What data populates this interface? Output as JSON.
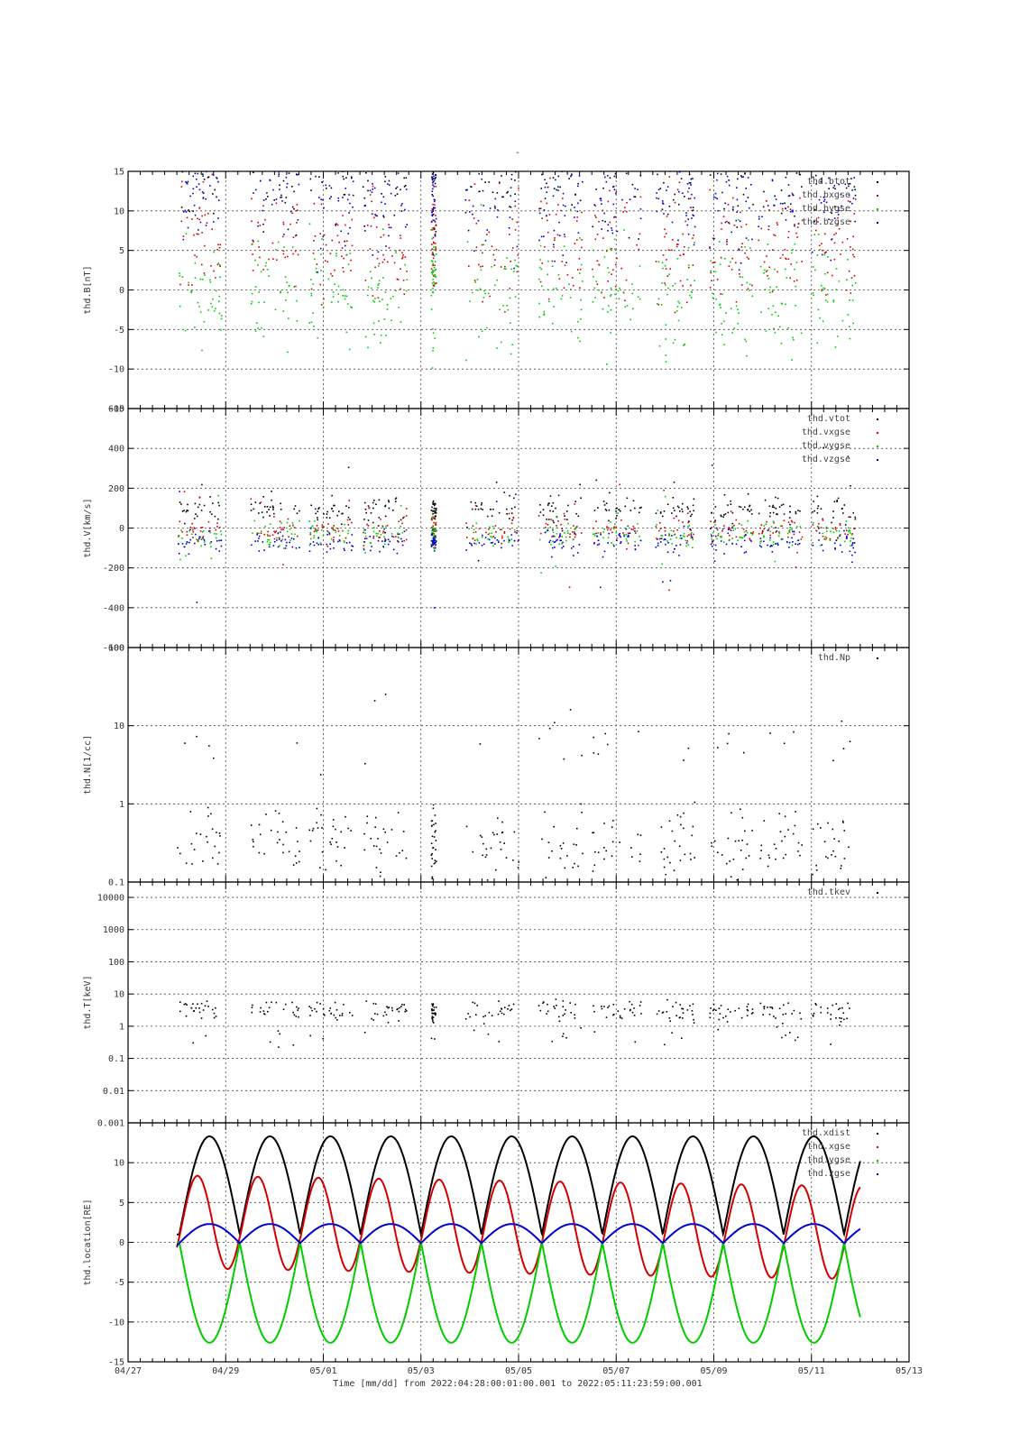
{
  "figure": {
    "title": "-",
    "xlabel": "Time [mm/dd]  from 2022:04:28:00:01:00.001  to  2022:05:11:23:59:00.001",
    "x_tick_labels": [
      "04/27",
      "04/29",
      "05/01",
      "05/03",
      "05/05",
      "05/07",
      "05/09",
      "05/11",
      "05/13"
    ]
  },
  "chart_data": [
    {
      "type": "scatter",
      "ylabel": "thd.B[nT]",
      "ylim": [
        -15,
        15
      ],
      "yscale": "linear",
      "yticks": [
        -15,
        -10,
        -5,
        0,
        5,
        10,
        15
      ],
      "grid": true,
      "legend_position": "top-right",
      "series": [
        {
          "name": "thd.btot",
          "color": "#000000"
        },
        {
          "name": "thd.bxgse",
          "color": "#d40000"
        },
        {
          "name": "thd.bygse",
          "color": "#00cc00"
        },
        {
          "name": "thd.bzgse",
          "color": "#0000cc"
        }
      ]
    },
    {
      "type": "scatter",
      "ylabel": "thd.V[km/s]",
      "ylim": [
        -600,
        600
      ],
      "yscale": "linear",
      "yticks": [
        -600,
        -400,
        -200,
        0,
        200,
        400,
        600
      ],
      "grid": true,
      "legend_position": "top-right",
      "series": [
        {
          "name": "thd.vtot",
          "color": "#000000"
        },
        {
          "name": "thd.vxgse",
          "color": "#d40000"
        },
        {
          "name": "thd.vygse",
          "color": "#00cc00"
        },
        {
          "name": "thd.vzgse",
          "color": "#0000cc"
        }
      ]
    },
    {
      "type": "scatter",
      "ylabel": "thd.N[1/cc]",
      "ylim": [
        0.1,
        100
      ],
      "yscale": "log",
      "yticks": [
        0.1,
        1,
        10,
        100
      ],
      "grid": true,
      "legend_position": "top-right",
      "series": [
        {
          "name": "thd.Np",
          "color": "#000000"
        }
      ]
    },
    {
      "type": "scatter",
      "ylabel": "thd.T[keV]",
      "ylim": [
        0.001,
        30000
      ],
      "yscale": "log",
      "yticks": [
        0.001,
        0.01,
        0.1,
        1,
        10,
        100,
        1000,
        10000
      ],
      "grid": true,
      "legend_position": "top-right",
      "series": [
        {
          "name": "thd.tkev",
          "color": "#000000"
        }
      ]
    },
    {
      "type": "line",
      "ylabel": "thd.location[RE]",
      "ylim": [
        -15,
        15
      ],
      "yscale": "linear",
      "yticks": [
        -15,
        -10,
        -5,
        0,
        5,
        10
      ],
      "grid": true,
      "legend_position": "top-right",
      "series": [
        {
          "name": "thd.xdist",
          "color": "#000000"
        },
        {
          "name": "thd.xgse",
          "color": "#d40000"
        },
        {
          "name": "thd.ygse",
          "color": "#00cc00"
        },
        {
          "name": "thd.zgse",
          "color": "#0000cc"
        }
      ]
    }
  ]
}
